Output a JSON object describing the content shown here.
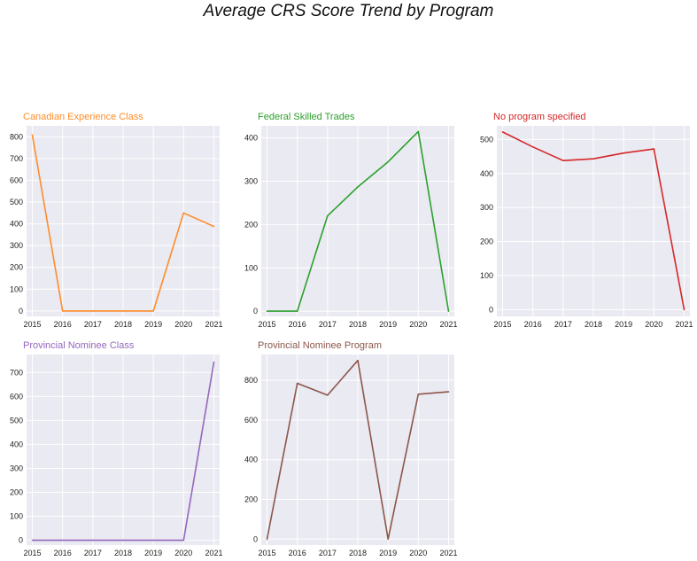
{
  "title": "Average CRS Score Trend by Program",
  "chart_data": [
    {
      "type": "line",
      "title": "Canadian Experience Class",
      "color": "#ff8c2a",
      "x": [
        "2015",
        "2016",
        "2017",
        "2018",
        "2019",
        "2020",
        "2021"
      ],
      "values": [
        808,
        0,
        0,
        0,
        0,
        450,
        388
      ],
      "ylim": [
        -25,
        850
      ],
      "yticks": [
        0,
        100,
        200,
        300,
        400,
        500,
        600,
        700,
        800
      ],
      "grid": true
    },
    {
      "type": "line",
      "title": "Federal Skilled Trades",
      "color": "#2ca02c",
      "x": [
        "2015",
        "2016",
        "2017",
        "2018",
        "2019",
        "2020",
        "2021"
      ],
      "values": [
        0,
        0,
        220,
        287,
        345,
        415,
        0
      ],
      "ylim": [
        -12,
        428
      ],
      "yticks": [
        0,
        100,
        200,
        300,
        400
      ],
      "grid": true
    },
    {
      "type": "line",
      "title": "No program specified",
      "color": "#d62728",
      "x": [
        "2015",
        "2016",
        "2017",
        "2018",
        "2019",
        "2020",
        "2021"
      ],
      "values": [
        522,
        478,
        438,
        443,
        460,
        472,
        0
      ],
      "ylim": [
        -20,
        540
      ],
      "yticks": [
        0,
        100,
        200,
        300,
        400,
        500
      ],
      "grid": true
    },
    {
      "type": "line",
      "title": "Provincial Nominee Class",
      "color": "#9467bd",
      "x": [
        "2015",
        "2016",
        "2017",
        "2018",
        "2019",
        "2020",
        "2021"
      ],
      "values": [
        0,
        0,
        0,
        0,
        0,
        0,
        743
      ],
      "ylim": [
        -20,
        775
      ],
      "yticks": [
        0,
        100,
        200,
        300,
        400,
        500,
        600,
        700
      ],
      "grid": true
    },
    {
      "type": "line",
      "title": "Provincial Nominee Program",
      "color": "#8c564b",
      "x": [
        "2015",
        "2016",
        "2017",
        "2018",
        "2019",
        "2020",
        "2021"
      ],
      "values": [
        0,
        785,
        725,
        900,
        0,
        730,
        742
      ],
      "ylim": [
        -30,
        930
      ],
      "yticks": [
        0,
        200,
        400,
        600,
        800
      ],
      "grid": true
    }
  ]
}
